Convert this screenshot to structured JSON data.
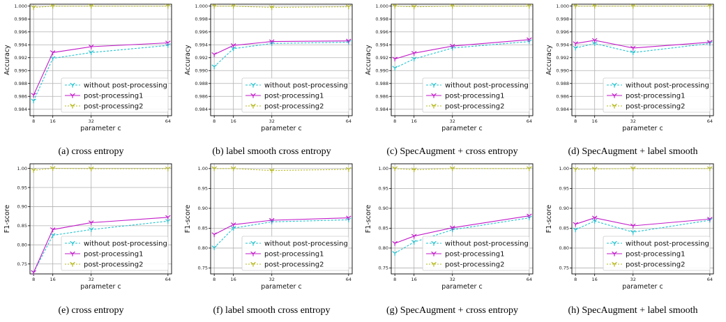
{
  "figure": {
    "legend_labels": [
      "without post-processing",
      "post-processing1",
      "post-processing2"
    ],
    "colors": {
      "without": "#22c3d0",
      "pp1": "#c21bc9",
      "pp2": "#b6b81a"
    }
  },
  "chart_data": [
    {
      "type": "line",
      "caption": "(a)  cross entropy",
      "xlabel": "parameter c",
      "ylabel": "Accuracy",
      "x": [
        8,
        16,
        32,
        64
      ],
      "xlim": [
        6.5,
        65.5
      ],
      "ylim": [
        0.983,
        1.0003
      ],
      "yticks": [
        0.984,
        0.986,
        0.988,
        0.99,
        0.992,
        0.994,
        0.996,
        0.998,
        1.0
      ],
      "ytick_labels": [
        "0.984",
        "0.986",
        "0.988",
        "0.990",
        "0.992",
        "0.994",
        "0.996",
        "0.998",
        "1.000"
      ],
      "legend_position": "lower-right",
      "grid": true,
      "series": [
        {
          "name": "without post-processing",
          "values": [
            0.9853,
            0.9919,
            0.9928,
            0.9939
          ]
        },
        {
          "name": "post-processing1",
          "values": [
            0.9862,
            0.9928,
            0.9937,
            0.9943
          ]
        },
        {
          "name": "post-processing2",
          "values": [
            0.9998,
            1.0,
            1.0,
            1.0
          ]
        }
      ]
    },
    {
      "type": "line",
      "caption": "(b)  label smooth cross entropy",
      "xlabel": "parameter c",
      "ylabel": "Accuracy",
      "x": [
        8,
        16,
        32,
        64
      ],
      "xlim": [
        6.5,
        65.5
      ],
      "ylim": [
        0.983,
        1.0003
      ],
      "yticks": [
        0.984,
        0.986,
        0.988,
        0.99,
        0.992,
        0.994,
        0.996,
        0.998,
        1.0
      ],
      "ytick_labels": [
        "0.984",
        "0.986",
        "0.988",
        "0.990",
        "0.992",
        "0.994",
        "0.996",
        "0.998",
        "1.000"
      ],
      "legend_position": "lower-right",
      "grid": true,
      "series": [
        {
          "name": "without post-processing",
          "values": [
            0.9906,
            0.9934,
            0.9942,
            0.9944
          ]
        },
        {
          "name": "post-processing1",
          "values": [
            0.9925,
            0.9939,
            0.9945,
            0.9946
          ]
        },
        {
          "name": "post-processing2",
          "values": [
            1.0,
            1.0,
            0.9998,
            0.9999
          ]
        }
      ]
    },
    {
      "type": "line",
      "caption": "(c)  SpecAugment + cross entropy",
      "xlabel": "parameter c",
      "ylabel": "Accuracy",
      "x": [
        8,
        16,
        32,
        64
      ],
      "xlim": [
        6.5,
        65.5
      ],
      "ylim": [
        0.983,
        1.0003
      ],
      "yticks": [
        0.984,
        0.986,
        0.988,
        0.99,
        0.992,
        0.994,
        0.996,
        0.998,
        1.0
      ],
      "ytick_labels": [
        "0.984",
        "0.986",
        "0.988",
        "0.990",
        "0.992",
        "0.994",
        "0.996",
        "0.998",
        "1.000"
      ],
      "legend_position": "lower-right",
      "grid": true,
      "series": [
        {
          "name": "without post-processing",
          "values": [
            0.9904,
            0.9918,
            0.9935,
            0.9945
          ]
        },
        {
          "name": "post-processing1",
          "values": [
            0.9918,
            0.9927,
            0.9938,
            0.9948
          ]
        },
        {
          "name": "post-processing2",
          "values": [
            1.0,
            0.9999,
            1.0,
            1.0
          ]
        }
      ]
    },
    {
      "type": "line",
      "caption": "(d)  SpecAugment + label smooth",
      "xlabel": "parameter c",
      "ylabel": "Accuracy",
      "x": [
        8,
        16,
        32,
        64
      ],
      "xlim": [
        6.5,
        65.5
      ],
      "ylim": [
        0.983,
        1.0003
      ],
      "yticks": [
        0.984,
        0.986,
        0.988,
        0.99,
        0.992,
        0.994,
        0.996,
        0.998,
        1.0
      ],
      "ytick_labels": [
        "0.984",
        "0.986",
        "0.988",
        "0.990",
        "0.992",
        "0.994",
        "0.996",
        "0.998",
        "1.000"
      ],
      "legend_position": "lower-right",
      "grid": true,
      "series": [
        {
          "name": "without post-processing",
          "values": [
            0.9935,
            0.9942,
            0.9928,
            0.9942
          ]
        },
        {
          "name": "post-processing1",
          "values": [
            0.9942,
            0.9947,
            0.9935,
            0.9944
          ]
        },
        {
          "name": "post-processing2",
          "values": [
            1.0,
            1.0,
            1.0,
            1.0
          ]
        }
      ]
    },
    {
      "type": "line",
      "caption": "(e)  cross entropy",
      "xlabel": "parameter c",
      "ylabel": "F1-score",
      "x": [
        8,
        16,
        32,
        64
      ],
      "xlim": [
        6.5,
        65.5
      ],
      "ylim": [
        0.724,
        1.012
      ],
      "yticks": [
        0.75,
        0.8,
        0.85,
        0.9,
        0.95,
        1.0
      ],
      "ytick_labels": [
        "0.75",
        "0.80",
        "0.85",
        "0.90",
        "0.95",
        "1.00"
      ],
      "legend_position": "lower-right",
      "grid": true,
      "series": [
        {
          "name": "without post-processing",
          "values": [
            0.728,
            0.825,
            0.84,
            0.862
          ]
        },
        {
          "name": "post-processing1",
          "values": [
            0.728,
            0.84,
            0.858,
            0.872
          ]
        },
        {
          "name": "post-processing2",
          "values": [
            0.995,
            1.0,
            0.999,
            0.999
          ]
        }
      ]
    },
    {
      "type": "line",
      "caption": "(f)  label smooth cross entropy",
      "xlabel": "parameter c",
      "ylabel": "F1-score",
      "x": [
        8,
        16,
        32,
        64
      ],
      "xlim": [
        6.5,
        65.5
      ],
      "ylim": [
        0.735,
        1.012
      ],
      "yticks": [
        0.75,
        0.8,
        0.85,
        0.9,
        0.95,
        1.0
      ],
      "ytick_labels": [
        "0.75",
        "0.80",
        "0.85",
        "0.90",
        "0.95",
        "1.00"
      ],
      "legend_position": "lower-right",
      "grid": true,
      "series": [
        {
          "name": "without post-processing",
          "values": [
            0.801,
            0.85,
            0.866,
            0.871
          ]
        },
        {
          "name": "post-processing1",
          "values": [
            0.834,
            0.859,
            0.87,
            0.876
          ]
        },
        {
          "name": "post-processing2",
          "values": [
            1.0,
            1.0,
            0.995,
            0.998
          ]
        }
      ]
    },
    {
      "type": "line",
      "caption": "(g)  SpecAugment + cross entropy",
      "xlabel": "parameter c",
      "ylabel": "F1-score",
      "x": [
        8,
        16,
        32,
        64
      ],
      "xlim": [
        6.5,
        65.5
      ],
      "ylim": [
        0.735,
        1.012
      ],
      "yticks": [
        0.75,
        0.8,
        0.85,
        0.9,
        0.95,
        1.0
      ],
      "ytick_labels": [
        "0.75",
        "0.80",
        "0.85",
        "0.90",
        "0.95",
        "1.00"
      ],
      "legend_position": "lower-right",
      "grid": true,
      "series": [
        {
          "name": "without post-processing",
          "values": [
            0.787,
            0.815,
            0.846,
            0.876
          ]
        },
        {
          "name": "post-processing1",
          "values": [
            0.812,
            0.83,
            0.851,
            0.881
          ]
        },
        {
          "name": "post-processing2",
          "values": [
            1.0,
            0.997,
            1.0,
            1.0
          ]
        }
      ]
    },
    {
      "type": "line",
      "caption": "(h)  SpecAugment + label smooth",
      "xlabel": "parameter c",
      "ylabel": "F1-score",
      "x": [
        8,
        16,
        32,
        64
      ],
      "xlim": [
        6.5,
        65.5
      ],
      "ylim": [
        0.735,
        1.012
      ],
      "yticks": [
        0.75,
        0.8,
        0.85,
        0.9,
        0.95,
        1.0
      ],
      "ytick_labels": [
        "0.75",
        "0.80",
        "0.85",
        "0.90",
        "0.95",
        "1.00"
      ],
      "legend_position": "lower-right",
      "grid": true,
      "series": [
        {
          "name": "without post-processing",
          "values": [
            0.846,
            0.868,
            0.84,
            0.87
          ]
        },
        {
          "name": "post-processing1",
          "values": [
            0.86,
            0.876,
            0.856,
            0.873
          ]
        },
        {
          "name": "post-processing2",
          "values": [
            0.998,
            0.999,
            1.0,
            1.0
          ]
        }
      ]
    }
  ]
}
